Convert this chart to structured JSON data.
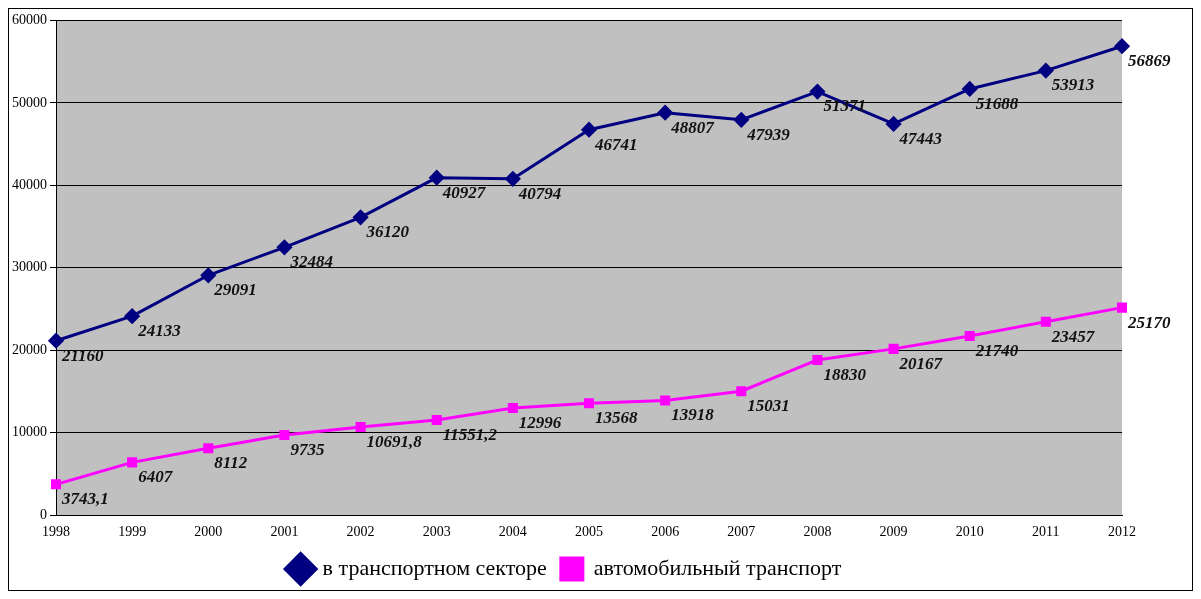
{
  "chart_data": {
    "type": "line",
    "categories": [
      "1998",
      "1999",
      "2000",
      "2001",
      "2002",
      "2003",
      "2004",
      "2005",
      "2006",
      "2007",
      "2008",
      "2009",
      "2010",
      "2011",
      "2012"
    ],
    "series": [
      {
        "name": "в транспортном секторе",
        "color": "#000080",
        "marker": "diamond",
        "values": [
          21160,
          24133,
          29091,
          32484,
          36120,
          40927,
          40794,
          46741,
          48807,
          47939,
          51371,
          47443,
          51688,
          53913,
          56869
        ],
        "value_labels": [
          "21160",
          "24133",
          "29091",
          "32484",
          "36120",
          "40927",
          "40794",
          "46741",
          "48807",
          "47939",
          "51371",
          "47443",
          "51688",
          "53913",
          "56869"
        ]
      },
      {
        "name": "автомобильный транспорт",
        "color": "#ff00ff",
        "marker": "square",
        "values": [
          3743.1,
          6407,
          8112,
          9735,
          10691.8,
          11551.2,
          12996,
          13568,
          13918,
          15031,
          18830,
          20167,
          21740,
          23457,
          25170
        ],
        "value_labels": [
          "3743,1",
          "6407",
          "8112",
          "9735",
          "10691,8",
          "11551,2",
          "12996",
          "13568",
          "13918",
          "15031",
          "18830",
          "20167",
          "21740",
          "23457",
          "25170"
        ]
      }
    ],
    "ylim": [
      0,
      60000
    ],
    "yticks": [
      0,
      10000,
      20000,
      30000,
      40000,
      50000,
      60000
    ],
    "grid": "y",
    "legend": "bottom",
    "line_style": "solid"
  }
}
